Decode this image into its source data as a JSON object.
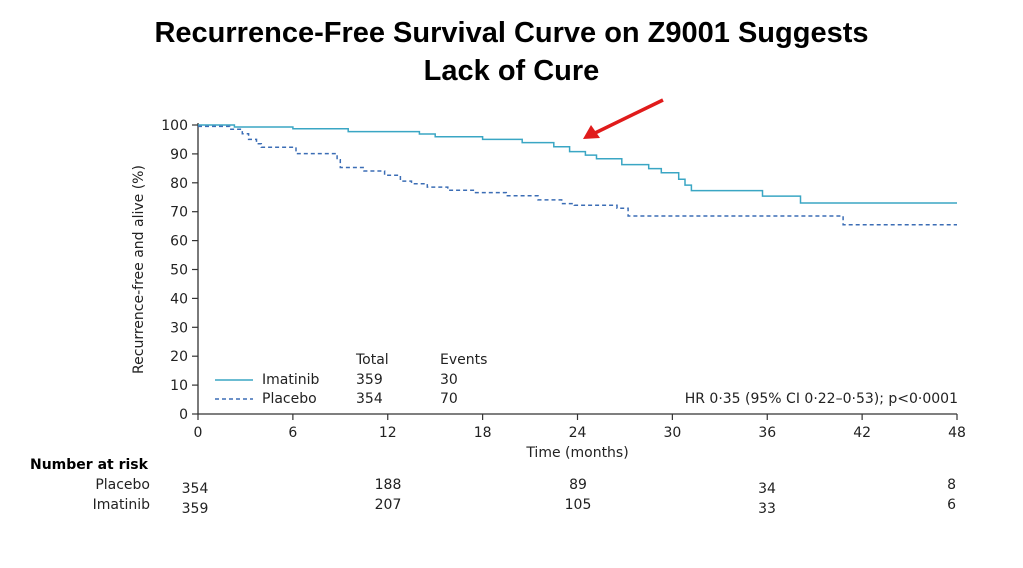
{
  "title": {
    "line1": "Recurrence-Free Survival Curve on Z9001 Suggests",
    "line2": "Lack of Cure"
  },
  "colors": {
    "imatinib": "#3aa6c4",
    "placebo": "#3b6db5",
    "arrow": "#e01b1b",
    "axis": "#333333"
  },
  "chart_data": {
    "type": "line",
    "title": "",
    "xlabel": "Time (months)",
    "ylabel": "Recurrence-free and alive (%)",
    "xlim": [
      0,
      48
    ],
    "ylim": [
      0,
      100
    ],
    "xticks": [
      "0",
      "6",
      "12",
      "18",
      "24",
      "30",
      "36",
      "42",
      "48"
    ],
    "yticks": [
      "0",
      "10",
      "20",
      "30",
      "40",
      "50",
      "60",
      "70",
      "80",
      "90",
      "100"
    ],
    "legend": {
      "header_total": "Total",
      "header_events": "Events",
      "entries": [
        {
          "name": "Imatinib",
          "total": "359",
          "events": "30",
          "style": "solid"
        },
        {
          "name": "Placebo",
          "total": "354",
          "events": "70",
          "style": "dashed"
        }
      ]
    },
    "annotation": "HR 0·35 (95% CI 0·22–0·53); p<0·0001",
    "series": [
      {
        "name": "Imatinib",
        "style": "solid",
        "points": [
          [
            0,
            100
          ],
          [
            2.3,
            100
          ],
          [
            2.3,
            99.3
          ],
          [
            6,
            99.3
          ],
          [
            6,
            98.7
          ],
          [
            9.5,
            98.7
          ],
          [
            9.5,
            97.7
          ],
          [
            14,
            97.7
          ],
          [
            14,
            96.9
          ],
          [
            15,
            96.9
          ],
          [
            15,
            95.9
          ],
          [
            18,
            95.9
          ],
          [
            18,
            95.0
          ],
          [
            20.5,
            95.0
          ],
          [
            20.5,
            93.9
          ],
          [
            22.5,
            93.9
          ],
          [
            22.5,
            92.5
          ],
          [
            23.5,
            92.5
          ],
          [
            23.5,
            90.8
          ],
          [
            24.5,
            90.8
          ],
          [
            24.5,
            89.6
          ],
          [
            25.2,
            89.6
          ],
          [
            25.2,
            88.3
          ],
          [
            26.8,
            88.3
          ],
          [
            26.8,
            86.3
          ],
          [
            28.5,
            86.3
          ],
          [
            28.5,
            84.9
          ],
          [
            29.3,
            84.9
          ],
          [
            29.3,
            83.5
          ],
          [
            30.4,
            83.5
          ],
          [
            30.4,
            81.2
          ],
          [
            30.8,
            81.2
          ],
          [
            30.8,
            79.2
          ],
          [
            31.2,
            79.2
          ],
          [
            31.2,
            77.3
          ],
          [
            35.7,
            77.3
          ],
          [
            35.7,
            75.4
          ],
          [
            38.1,
            75.4
          ],
          [
            38.1,
            73.0
          ],
          [
            48,
            73.0
          ]
        ]
      },
      {
        "name": "Placebo",
        "style": "dashed",
        "points": [
          [
            0,
            99.5
          ],
          [
            2,
            99.5
          ],
          [
            2,
            98.5
          ],
          [
            2.8,
            98.5
          ],
          [
            2.8,
            97.0
          ],
          [
            3.2,
            97.0
          ],
          [
            3.2,
            95.0
          ],
          [
            3.7,
            95.0
          ],
          [
            3.7,
            93.5
          ],
          [
            4,
            93.5
          ],
          [
            4,
            92.3
          ],
          [
            6.2,
            92.3
          ],
          [
            6.2,
            90.1
          ],
          [
            8.8,
            90.1
          ],
          [
            8.8,
            88.0
          ],
          [
            9,
            88.0
          ],
          [
            9,
            85.3
          ],
          [
            10.5,
            85.3
          ],
          [
            10.5,
            84.1
          ],
          [
            11.8,
            84.1
          ],
          [
            11.8,
            82.6
          ],
          [
            12.8,
            82.6
          ],
          [
            12.8,
            80.6
          ],
          [
            13.5,
            80.6
          ],
          [
            13.5,
            79.7
          ],
          [
            14.5,
            79.7
          ],
          [
            14.5,
            78.5
          ],
          [
            15.8,
            78.5
          ],
          [
            15.8,
            77.4
          ],
          [
            17.5,
            77.4
          ],
          [
            17.5,
            76.6
          ],
          [
            19.5,
            76.6
          ],
          [
            19.5,
            75.5
          ],
          [
            21.5,
            75.5
          ],
          [
            21.5,
            74.1
          ],
          [
            23,
            74.1
          ],
          [
            23,
            72.8
          ],
          [
            23.8,
            72.8
          ],
          [
            23.8,
            72.2
          ],
          [
            26.5,
            72.2
          ],
          [
            26.5,
            71.2
          ],
          [
            27.2,
            71.2
          ],
          [
            27.2,
            68.5
          ],
          [
            40.8,
            68.5
          ],
          [
            40.8,
            65.5
          ],
          [
            48,
            65.5
          ]
        ]
      }
    ]
  },
  "risk_table": {
    "header": "Number at risk",
    "rows": [
      {
        "label": "Placebo",
        "values": [
          "354",
          "188",
          "89",
          "34",
          "8"
        ]
      },
      {
        "label": "Imatinib",
        "values": [
          "359",
          "207",
          "105",
          "33",
          "6"
        ]
      }
    ]
  }
}
